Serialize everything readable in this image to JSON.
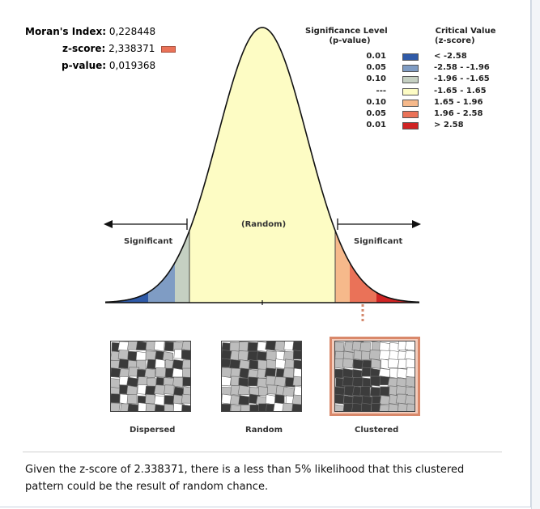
{
  "stats": {
    "morans_label": "Moran's Index:",
    "morans_value": "0,228448",
    "zscore_label": "z-score:",
    "zscore_value": "2,338371",
    "pvalue_label": "p-value:",
    "pvalue_value": "0,019368"
  },
  "legend": {
    "sig_header_1": "Significance Level",
    "sig_header_2": "(p-value)",
    "crit_header_1": "Critical Value",
    "crit_header_2": "(z-score)",
    "rows": [
      {
        "p": "0.01",
        "z": "< -2.58",
        "color": "#2f5aa8"
      },
      {
        "p": "0.05",
        "z": "-2.58 - -1.96",
        "color": "#7f9cc4"
      },
      {
        "p": "0.10",
        "z": "-1.96 - -1.65",
        "color": "#c5d0c2"
      },
      {
        "p": "---",
        "z": "-1.65 - 1.65",
        "color": "#fdfcc4"
      },
      {
        "p": "0.10",
        "z": "1.65 - 1.96",
        "color": "#f6b98b"
      },
      {
        "p": "0.05",
        "z": "1.96 - 2.58",
        "color": "#ea7258"
      },
      {
        "p": "0.01",
        "z": "> 2.58",
        "color": "#d02424"
      }
    ]
  },
  "curve": {
    "random_label": "(Random)",
    "left_label": "Significant",
    "right_label": "Significant"
  },
  "maps": {
    "dispersed_label": "Dispersed",
    "random_label": "Random",
    "clustered_label": "Clustered"
  },
  "caption": "Given the z-score of 2.338371, there is a less than 5% likelihood that this clustered pattern could be the result of random chance."
}
